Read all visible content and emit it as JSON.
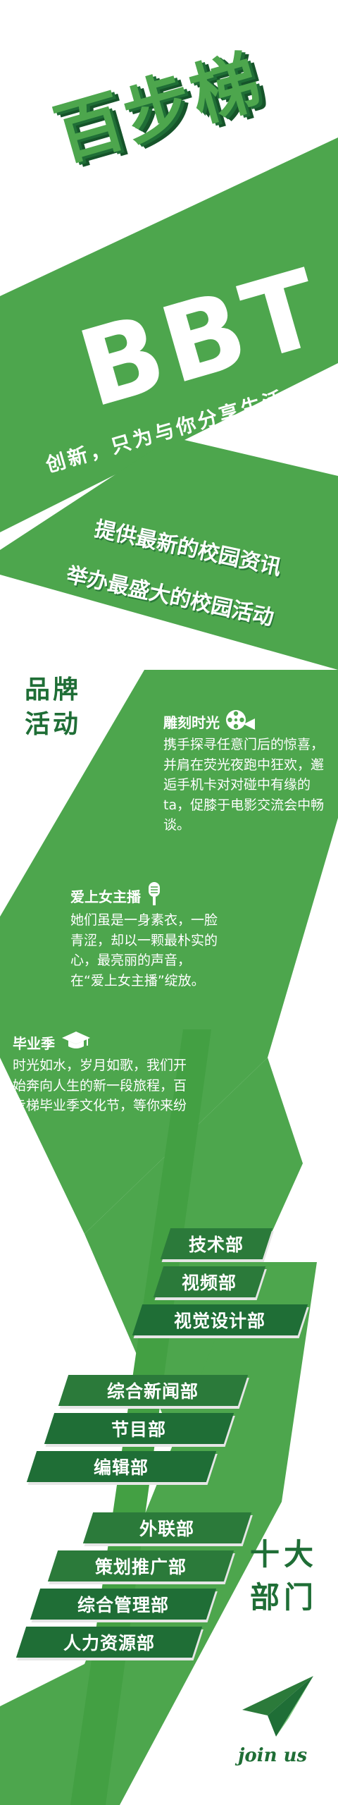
{
  "brand": {
    "title": "百步梯",
    "acronym": "BBT",
    "tagline": "创新，只为与你分享生活"
  },
  "mission": [
    "提供最新的校园资讯",
    "举办最盛大的校园活动"
  ],
  "brand_activities": {
    "label_lines": [
      "品牌",
      "活动"
    ],
    "items": [
      {
        "title": "雕刻时光",
        "icon": "film-reel-icon",
        "text": "携手探寻任意门后的惊喜，并肩在荧光夜跑中狂欢，邂逅手机卡对对碰中有缘的ta，促膝于电影交流会中畅谈。"
      },
      {
        "title": "爱上女主播",
        "icon": "microphone-icon",
        "text": "她们虽是一身素衣，一脸青涩，却以一颗最朴实的心，最亮丽的声音，在“爱上女主播”绽放。"
      },
      {
        "title": "毕业季",
        "icon": "graduation-cap-icon",
        "text": "时光如水，岁月如歌，我们开始奔向人生的新一段旅程，百步梯毕业季文化节，等你来纷呈。"
      }
    ]
  },
  "departments": {
    "label_lines": [
      "十大",
      "部门"
    ],
    "items": [
      "技术部",
      "视频部",
      "视觉设计部",
      "综合新闻部",
      "节目部",
      "编辑部",
      "外联部",
      "策划推广部",
      "综合管理部",
      "人力资源部"
    ]
  },
  "join": {
    "label": "join us",
    "icon": "paper-plane-icon"
  },
  "colors": {
    "primary": "#4da64d",
    "dark": "#1f6e36",
    "darker": "#2b7a3a",
    "background": "#ffffff"
  }
}
